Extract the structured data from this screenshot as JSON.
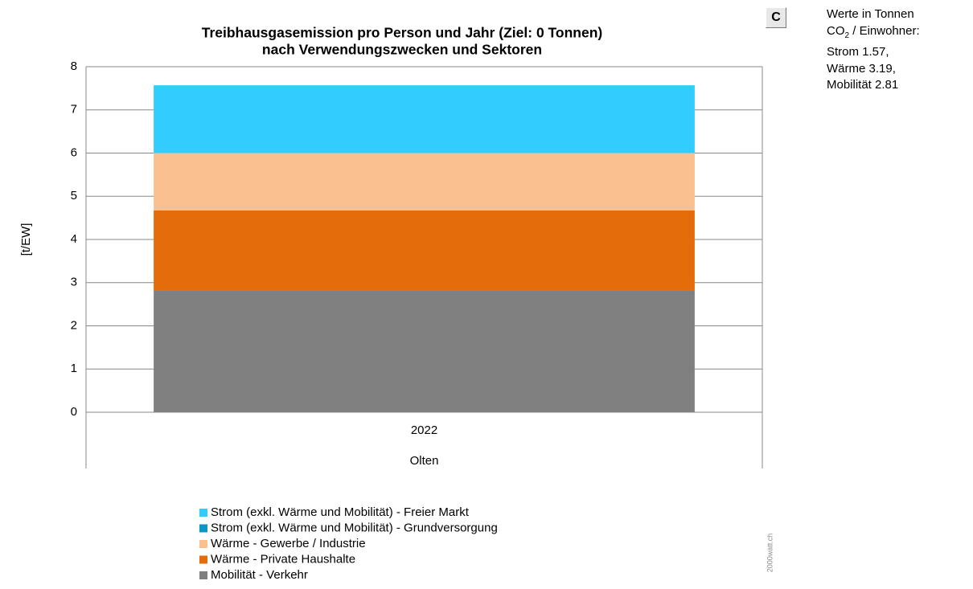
{
  "chart_data": {
    "type": "stacked_bar",
    "title": [
      "Treibhausgasemission pro Person und Jahr (Ziel: 0 Tonnen)",
      "nach Verwendungszwecken und Sektoren"
    ],
    "y_label": "[t/EW]",
    "categories": [
      "2022"
    ],
    "category_group": "Olten",
    "series": [
      {
        "name": "Mobilität - Verkehr",
        "color": "#808080",
        "values": [
          2.81
        ]
      },
      {
        "name": "Wärme - Private Haushalte",
        "color": "#e46c0a",
        "values": [
          1.86
        ]
      },
      {
        "name": "Wärme - Gewerbe / Industrie",
        "color": "#fac090",
        "values": [
          1.33
        ]
      },
      {
        "name": "Strom (exkl. Wärme und Mobilität) - Grundversorgung",
        "color": "#0e94c7",
        "values": [
          0
        ]
      },
      {
        "name": "Strom (exkl. Wärme und Mobilität) - Freier Markt",
        "color": "#33ccff",
        "values": [
          1.57
        ]
      }
    ],
    "ylim": [
      0,
      8
    ],
    "yticks": [
      0,
      1,
      2,
      3,
      4,
      5,
      6,
      7,
      8
    ],
    "grid": true
  },
  "button": "C",
  "note": {
    "line1": "Werte in Tonnen",
    "co": "CO",
    "sub": "2",
    "rest": " / Einwohner:",
    "lines": [
      "Strom 1.57,",
      "Wärme 3.19,",
      "Mobilität 2.81"
    ]
  },
  "watermark": "2000watt.ch"
}
